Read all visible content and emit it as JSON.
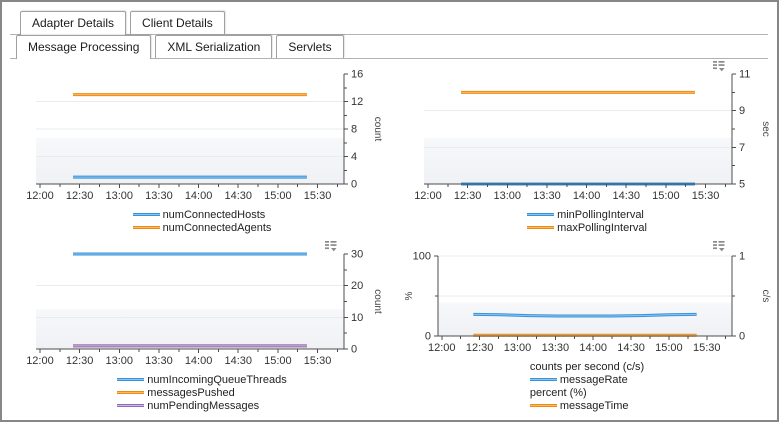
{
  "tabs_primary": [
    {
      "label": "Adapter Details",
      "active": true
    },
    {
      "label": "Client Details",
      "active": false
    }
  ],
  "tabs_secondary": [
    {
      "label": "Message Processing",
      "active": true
    },
    {
      "label": "XML Serialization",
      "active": false
    },
    {
      "label": "Servlets",
      "active": false
    }
  ],
  "colors": {
    "blue": {
      "main": "#3a92da",
      "light": "#8ac5ef"
    },
    "orange": {
      "main": "#ee8b16",
      "light": "#f8bb62"
    },
    "purple": {
      "main": "#8f6cba",
      "light": "#cdb6e4"
    },
    "axis": "#4d4d4d",
    "grid": "#e9ebef",
    "band_top": "#f7f8fa",
    "band_bottom": "#eff1f5",
    "tick_text": "#333333",
    "window_border": "#878787"
  },
  "x_axis": {
    "tick_labels": [
      "12:00",
      "12:30",
      "13:00",
      "13:30",
      "14:00",
      "14:30",
      "15:00",
      "15:30"
    ],
    "tick_minutes": [
      0,
      30,
      60,
      90,
      120,
      150,
      180,
      210
    ],
    "minor_minutes": [
      15,
      45,
      75,
      105,
      135,
      165,
      195,
      225
    ],
    "range_minutes": [
      -3,
      230
    ],
    "data_range_minutes": [
      25,
      202
    ]
  },
  "chart_data": [
    {
      "type": "line",
      "name": "connected-counts",
      "menu_icon": false,
      "y_right": {
        "label": "count",
        "min": 0,
        "max": 16,
        "ticks": [
          0,
          4,
          8,
          12,
          16
        ],
        "minor": [
          2,
          6,
          10,
          14
        ],
        "grid": [
          4,
          8,
          12
        ]
      },
      "series": [
        {
          "name": "numConnectedHosts",
          "color": "blue",
          "value": 1
        },
        {
          "name": "numConnectedAgents",
          "color": "orange",
          "value": 13
        }
      ]
    },
    {
      "type": "line",
      "name": "polling-interval",
      "menu_icon": true,
      "y_right": {
        "label": "sec",
        "min": 5,
        "max": 11,
        "ticks": [
          5,
          7,
          9,
          11
        ],
        "minor": [
          6,
          8,
          10
        ],
        "grid": [
          7,
          9
        ]
      },
      "series": [
        {
          "name": "minPollingInterval",
          "color": "blue",
          "value": 5
        },
        {
          "name": "maxPollingInterval",
          "color": "orange",
          "value": 10
        }
      ]
    },
    {
      "type": "line",
      "name": "queue-counts",
      "menu_icon": true,
      "y_right": {
        "label": "count",
        "min": 0,
        "max": 30,
        "ticks": [
          0,
          10,
          20,
          30
        ],
        "minor": [
          5,
          15,
          25
        ],
        "grid": [
          10,
          20
        ]
      },
      "series": [
        {
          "name": "numIncomingQueueThreads",
          "color": "blue",
          "value": 30
        },
        {
          "name": "messagesPushed",
          "color": "orange",
          "value": 1
        },
        {
          "name": "numPendingMessages",
          "color": "purple",
          "value": 1
        }
      ]
    },
    {
      "type": "line",
      "name": "message-rate-time",
      "menu_icon": true,
      "y_left": {
        "label": "%",
        "min": 0,
        "max": 100,
        "ticks": [
          0,
          100
        ],
        "minor": [
          50
        ]
      },
      "y_right": {
        "label": "c/s",
        "min": 0,
        "max": 1,
        "ticks": [
          0,
          1
        ],
        "minor": [
          0.5
        ],
        "grid": [
          0.5,
          1
        ]
      },
      "series": [
        {
          "name": "messageRate",
          "color": "blue",
          "axis": "right",
          "x_minutes": [
            25,
            47,
            69,
            91,
            113,
            135,
            157,
            180,
            202
          ],
          "values": [
            0.27,
            0.265,
            0.255,
            0.25,
            0.25,
            0.25,
            0.255,
            0.265,
            0.27
          ]
        },
        {
          "name": "messageTime",
          "color": "orange",
          "axis": "left",
          "value": 1
        }
      ],
      "legend_groups": [
        {
          "header": "counts per second (c/s)",
          "series": [
            "messageRate"
          ]
        },
        {
          "header": "percent (%)",
          "series": [
            "messageTime"
          ]
        }
      ]
    }
  ]
}
